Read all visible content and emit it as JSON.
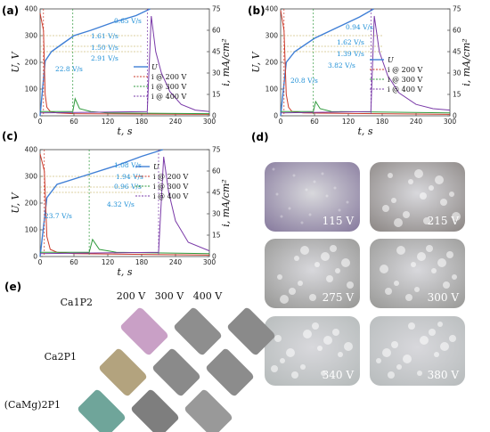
{
  "panels": [
    {
      "label": "(a)",
      "xlabel": "t, s",
      "ylabel_left": "U, V",
      "ylabel_right": "i, mA/cm²",
      "xticks": [
        0,
        60,
        120,
        180,
        240,
        300
      ],
      "yticks_left": [
        0,
        100,
        200,
        300,
        400
      ],
      "yticks_right": [
        0,
        15,
        30,
        45,
        60,
        75
      ],
      "annotations": [
        "0.65 V/s",
        "1.61 V/s",
        "1.50 V/s",
        "2.91 V/s",
        "22.8 V/s"
      ],
      "legend": [
        "U",
        "i @ 200 V",
        "i @ 300 V",
        "i @ 400 V"
      ]
    },
    {
      "label": "(b)",
      "xlabel": "t, s",
      "ylabel_left": "U, V",
      "ylabel_right": "i, mA/cm²",
      "xticks": [
        0,
        60,
        120,
        180,
        240,
        300
      ],
      "yticks_left": [
        0,
        100,
        200,
        300,
        400
      ],
      "yticks_right": [
        0,
        15,
        30,
        45,
        60,
        75
      ],
      "annotations": [
        "0.94 V/s",
        "1.62 V/s",
        "1.39 V/s",
        "3.82 V/s",
        "20.8 V/s"
      ],
      "legend": [
        "U",
        "i @ 200 V",
        "i @ 300 V",
        "i @ 400 V"
      ]
    },
    {
      "label": "(c)",
      "xlabel": "t, s",
      "ylabel_left": "U, V",
      "ylabel_right": "i, mA/cm²",
      "xticks": [
        0,
        60,
        120,
        180,
        240,
        300
      ],
      "yticks_left": [
        0,
        100,
        200,
        300,
        400
      ],
      "yticks_right": [
        0,
        15,
        30,
        45,
        60,
        75
      ],
      "annotations": [
        "1.08 V/s",
        "1.94 V/s",
        "0.96 V/s",
        "4.32 V/s",
        "23.7 V/s"
      ],
      "legend": [
        "U",
        "i @ 200 V",
        "i @ 300 V",
        "i @ 400 V"
      ]
    }
  ],
  "chart_data": [
    {
      "type": "line",
      "panel": "(a)",
      "xlim": [
        0,
        300
      ],
      "ylim": [
        0,
        400
      ],
      "ylim_right": [
        0,
        75
      ],
      "series": [
        {
          "name": "U",
          "x": [
            0,
            9,
            20,
            40,
            60,
            90,
            130,
            170,
            195
          ],
          "y": [
            0,
            205,
            240,
            270,
            300,
            320,
            350,
            375,
            400
          ]
        },
        {
          "name": "i @ 200 V",
          "axis": "right",
          "x": [
            0,
            6,
            9,
            12,
            18,
            30,
            60,
            300
          ],
          "y": [
            72,
            60,
            15,
            6,
            3,
            2,
            1.5,
            1
          ]
        },
        {
          "name": "i @ 300 V",
          "axis": "right",
          "x": [
            0,
            40,
            58,
            62,
            70,
            90,
            120,
            300
          ],
          "y": [
            3,
            3,
            3,
            12,
            5,
            3,
            2,
            1.5
          ]
        },
        {
          "name": "i @ 400 V",
          "axis": "right",
          "x": [
            0,
            190,
            197,
            205,
            215,
            230,
            250,
            275,
            300
          ],
          "y": [
            2,
            3,
            70,
            45,
            30,
            17,
            8,
            4,
            3
          ]
        }
      ]
    },
    {
      "type": "line",
      "panel": "(b)",
      "xlim": [
        0,
        300
      ],
      "ylim": [
        0,
        400
      ],
      "ylim_right": [
        0,
        75
      ],
      "series": [
        {
          "name": "U",
          "x": [
            0,
            10,
            25,
            60,
            100,
            140,
            165
          ],
          "y": [
            0,
            200,
            240,
            290,
            330,
            370,
            400
          ]
        },
        {
          "name": "i @ 200 V",
          "axis": "right",
          "x": [
            0,
            6,
            10,
            14,
            20,
            40,
            300
          ],
          "y": [
            74,
            60,
            15,
            6,
            3,
            2,
            1
          ]
        },
        {
          "name": "i @ 300 V",
          "axis": "right",
          "x": [
            0,
            40,
            58,
            62,
            70,
            90,
            300
          ],
          "y": [
            3,
            3,
            3,
            10,
            5,
            3,
            2
          ]
        },
        {
          "name": "i @ 400 V",
          "axis": "right",
          "x": [
            0,
            160,
            166,
            175,
            190,
            210,
            240,
            270,
            300
          ],
          "y": [
            2,
            3,
            70,
            45,
            28,
            16,
            8,
            5,
            4
          ]
        }
      ]
    },
    {
      "type": "line",
      "panel": "(c)",
      "xlim": [
        0,
        200
      ],
      "ylim": [
        0,
        400
      ],
      "ylim_right": [
        0,
        75
      ],
      "series": [
        {
          "name": "U",
          "x": [
            0,
            8,
            20,
            50,
            90,
            120,
            145
          ],
          "y": [
            0,
            220,
            270,
            300,
            340,
            375,
            400
          ]
        },
        {
          "name": "i @ 200 V",
          "axis": "right",
          "x": [
            0,
            5,
            8,
            12,
            20,
            40,
            200
          ],
          "y": [
            72,
            60,
            14,
            5,
            3,
            2,
            1
          ]
        },
        {
          "name": "i @ 300 V",
          "axis": "right",
          "x": [
            0,
            40,
            58,
            62,
            70,
            90,
            200
          ],
          "y": [
            3,
            3,
            3,
            12,
            5,
            3,
            2
          ]
        },
        {
          "name": "i @ 400 V",
          "axis": "right",
          "x": [
            0,
            140,
            146,
            152,
            160,
            175,
            200
          ],
          "y": [
            2,
            3,
            70,
            45,
            25,
            10,
            4
          ]
        }
      ]
    }
  ],
  "panel_d": {
    "label": "(d)",
    "photos": [
      "115 V",
      "215 V",
      "275 V",
      "300 V",
      "340 V",
      "380 V"
    ]
  },
  "panel_e": {
    "label": "(e)",
    "columns": [
      "200 V",
      "300 V",
      "400 V"
    ],
    "rows": [
      "Ca1P2",
      "Ca2P1",
      "(CaMg)2P1"
    ]
  },
  "colors": {
    "U": "#3f7fd6",
    "i200": "#cc3a2a",
    "i300": "#2f9a3c",
    "i400": "#7a3aa8",
    "annotation": "#1f8fd6"
  }
}
